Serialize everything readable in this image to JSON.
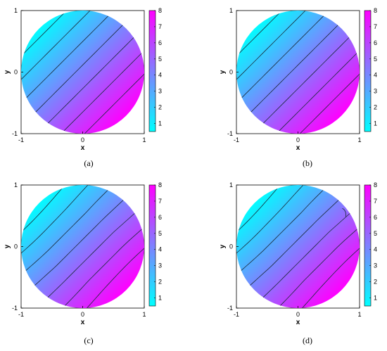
{
  "chart_data": [
    {
      "type": "heatmap",
      "caption": "(a)",
      "xlabel": "x",
      "ylabel": "y",
      "xlim": [
        -1,
        1
      ],
      "ylim": [
        -1,
        1
      ],
      "xticks": [
        "-1",
        "0",
        "1"
      ],
      "yticks": [
        "-1",
        "0",
        "1"
      ],
      "colorbar": {
        "min": 0.5,
        "max": 8,
        "ticks": [
          "1",
          "2",
          "3",
          "4",
          "5",
          "6",
          "7",
          "8"
        ]
      },
      "domain": "unit disk",
      "field": {
        "form": "linear",
        "gradient_direction": [
          1,
          -1
        ],
        "value_at_top_left_edge": 0.6,
        "value_at_bottom_right_edge": 8
      },
      "contour_levels": [
        1,
        2,
        3,
        4,
        5,
        6,
        7
      ],
      "grid": false
    },
    {
      "type": "heatmap",
      "caption": "(b)",
      "xlabel": "x",
      "ylabel": "y",
      "xlim": [
        -1,
        1
      ],
      "ylim": [
        -1,
        1
      ],
      "xticks": [
        "-1",
        "0",
        "1"
      ],
      "yticks": [
        "-1",
        "0",
        "1"
      ],
      "colorbar": {
        "min": 0.5,
        "max": 8,
        "ticks": [
          "1",
          "2",
          "3",
          "4",
          "5",
          "6",
          "7",
          "8"
        ]
      },
      "domain": "unit disk",
      "field": {
        "form": "linear",
        "gradient_direction": [
          1,
          -1
        ],
        "value_at_top_left_edge": 0.6,
        "value_at_bottom_right_edge": 8
      },
      "contour_levels": [
        1,
        2,
        3,
        4,
        5,
        6,
        7
      ],
      "grid": false
    },
    {
      "type": "heatmap",
      "caption": "(c)",
      "xlabel": "x",
      "ylabel": "y",
      "xlim": [
        -1,
        1
      ],
      "ylim": [
        -1,
        1
      ],
      "xticks": [
        "-1",
        "0",
        "1"
      ],
      "yticks": [
        "-1",
        "0",
        "1"
      ],
      "colorbar": {
        "min": 0.5,
        "max": 8,
        "ticks": [
          "1",
          "2",
          "3",
          "4",
          "5",
          "6",
          "7",
          "8"
        ]
      },
      "domain": "unit disk",
      "field": {
        "form": "linear-perturbed",
        "gradient_direction": [
          1,
          -1
        ],
        "value_at_top_left_edge": 0.6,
        "value_at_bottom_right_edge": 8
      },
      "contour_levels": [
        1,
        2,
        3,
        4,
        5,
        6,
        7
      ],
      "grid": false
    },
    {
      "type": "heatmap",
      "caption": "(d)",
      "xlabel": "x",
      "ylabel": "y",
      "xlim": [
        -1,
        1
      ],
      "ylim": [
        -1,
        1
      ],
      "xticks": [
        "-1",
        "0",
        "1"
      ],
      "yticks": [
        "-1",
        "0",
        "1"
      ],
      "colorbar": {
        "min": 0.5,
        "max": 8,
        "ticks": [
          "1",
          "2",
          "3",
          "4",
          "5",
          "6",
          "7",
          "8"
        ]
      },
      "domain": "unit disk",
      "field": {
        "form": "linear-perturbed",
        "gradient_direction": [
          1,
          -1
        ],
        "value_at_top_left_edge": 0.6,
        "value_at_bottom_right_edge": 8
      },
      "contour_levels": [
        1,
        2,
        3,
        4,
        5,
        6,
        7
      ],
      "grid": false
    }
  ],
  "colors": {
    "colormap_low": "#00ffff",
    "colormap_high": "#ff00ff",
    "contour_line": "#1a2a3a",
    "axis": "#000000"
  }
}
